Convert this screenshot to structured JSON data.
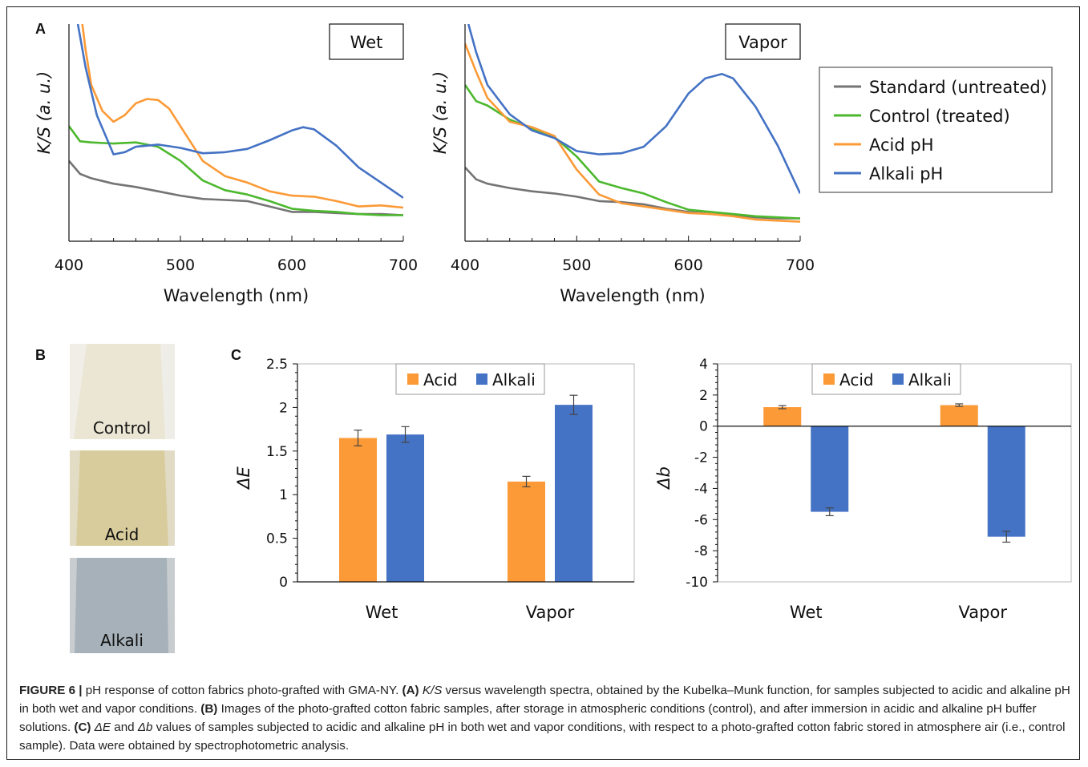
{
  "panels": {
    "A": "A",
    "B": "B",
    "C": "C"
  },
  "colors": {
    "standard": "#747474",
    "control": "#4cb82e",
    "acid": "#fb9a36",
    "alkali": "#4472c4"
  },
  "panel_b": {
    "samples": [
      {
        "label": "Control",
        "color": "#ebe6d4"
      },
      {
        "label": "Acid",
        "color": "#d9cc9c"
      },
      {
        "label": "Alkali",
        "color": "#a6b1b9"
      }
    ]
  },
  "caption": {
    "figure_label": "FIGURE 6 |",
    "intro": " pH response of cotton fabrics photo-grafted with GMA-NY. ",
    "a_tag": "(A)",
    "a_ks": " K/S",
    "a_text": " versus wavelength spectra, obtained by the Kubelka–Munk function, for samples subjected to acidic and alkaline pH in both wet and vapor conditions. ",
    "b_tag": "(B)",
    "b_text": " Images of the photo-grafted cotton fabric samples, after storage in atmospheric conditions (control), and after immersion in acidic and alkaline pH buffer solutions. ",
    "c_tag": "(C)",
    "c_de": " ΔE",
    "c_and": " and ",
    "c_db": "Δb",
    "c_text": " values of samples subjected to acidic and alkaline pH in both wet and vapor conditions, with respect to a photo-grafted cotton fabric stored in atmosphere air (i.e., control sample). Data were obtained by spectrophotometric analysis."
  },
  "chart_data": [
    {
      "type": "line",
      "panel": "A",
      "title": "Wet",
      "xlabel": "Wavelength (nm)",
      "ylabel": "K/S (a. u.)",
      "xlim": [
        400,
        700
      ],
      "ylim": [
        0,
        100
      ],
      "xticks": [
        400,
        500,
        600,
        700
      ],
      "y_tick_labels": false,
      "series": [
        {
          "name": "Standard (untreated)",
          "color": "#747474",
          "x": [
            400,
            410,
            420,
            440,
            460,
            480,
            500,
            520,
            540,
            560,
            580,
            600,
            620,
            640,
            660,
            680,
            700
          ],
          "y": [
            37,
            31,
            29,
            26.5,
            25,
            23,
            21,
            19.5,
            19,
            18.5,
            16,
            13.5,
            13.5,
            13,
            12.5,
            12.5,
            12
          ]
        },
        {
          "name": "Control (treated)",
          "color": "#4cb82e",
          "x": [
            400,
            410,
            420,
            440,
            460,
            480,
            500,
            520,
            540,
            560,
            580,
            600,
            620,
            640,
            660,
            680,
            700
          ],
          "y": [
            53,
            46,
            45.5,
            45,
            45.5,
            43.5,
            37,
            28,
            23.5,
            21.5,
            18.5,
            15,
            14,
            13.5,
            12.5,
            12,
            12
          ]
        },
        {
          "name": "Acid pH",
          "color": "#fb9a36",
          "x": [
            412,
            415,
            420,
            430,
            440,
            450,
            460,
            470,
            480,
            490,
            500,
            520,
            540,
            560,
            580,
            600,
            620,
            640,
            660,
            680,
            700
          ],
          "y": [
            100,
            88,
            72,
            60,
            55,
            58,
            63.5,
            65.5,
            65,
            61,
            53,
            37,
            30,
            27,
            23,
            21,
            20.5,
            18.5,
            16,
            16.5,
            15.5
          ]
        },
        {
          "name": "Alkali pH",
          "color": "#4472c4",
          "x": [
            408,
            415,
            425,
            440,
            450,
            460,
            480,
            500,
            520,
            540,
            560,
            580,
            600,
            610,
            620,
            640,
            660,
            680,
            700
          ],
          "y": [
            100,
            80,
            58,
            40,
            41,
            43.5,
            44.5,
            43,
            40.5,
            41,
            42.5,
            46.5,
            51,
            52.5,
            51.5,
            44,
            34,
            27,
            20
          ]
        }
      ]
    },
    {
      "type": "line",
      "panel": "A",
      "title": "Vapor",
      "xlabel": "Wavelength (nm)",
      "ylabel": "K/S (a. u.)",
      "xlim": [
        400,
        700
      ],
      "ylim": [
        0,
        100
      ],
      "xticks": [
        400,
        500,
        600,
        700
      ],
      "y_tick_labels": false,
      "series": [
        {
          "name": "Standard (untreated)",
          "color": "#747474",
          "x": [
            400,
            410,
            420,
            440,
            460,
            480,
            500,
            520,
            540,
            560,
            580,
            600,
            620,
            640,
            660,
            680,
            700
          ],
          "y": [
            34,
            28.5,
            26.5,
            24.5,
            23,
            22,
            20.5,
            18.5,
            18,
            17,
            15,
            13.5,
            12.5,
            12,
            11,
            10.5,
            10.5
          ]
        },
        {
          "name": "Control (treated)",
          "color": "#4cb82e",
          "x": [
            400,
            410,
            420,
            440,
            460,
            480,
            500,
            520,
            540,
            560,
            580,
            600,
            620,
            640,
            660,
            680,
            700
          ],
          "y": [
            72,
            64.5,
            62.5,
            56,
            52,
            48,
            39,
            27.5,
            24.5,
            22,
            18,
            14.5,
            13.5,
            12.5,
            11.5,
            11,
            10.5
          ]
        },
        {
          "name": "Acid pH",
          "color": "#fb9a36",
          "x": [
            400,
            410,
            420,
            440,
            460,
            480,
            500,
            520,
            540,
            560,
            580,
            600,
            620,
            640,
            660,
            680,
            700
          ],
          "y": [
            91,
            78,
            66,
            55,
            52.5,
            48.5,
            33,
            21.5,
            17.5,
            16,
            14.5,
            13,
            12.5,
            11.5,
            10,
            9.5,
            9
          ]
        },
        {
          "name": "Alkali pH",
          "color": "#4472c4",
          "x": [
            403,
            410,
            420,
            440,
            460,
            480,
            500,
            520,
            540,
            560,
            580,
            600,
            615,
            630,
            640,
            660,
            680,
            700
          ],
          "y": [
            100,
            87,
            72,
            58.5,
            51,
            47.5,
            41.5,
            40,
            40.5,
            43.5,
            53,
            68,
            75,
            77,
            75,
            62,
            44,
            22
          ]
        }
      ]
    },
    {
      "type": "bar",
      "panel": "C",
      "categories": [
        "Wet",
        "Vapor"
      ],
      "ylabel": "ΔE",
      "ylim": [
        0,
        2.5
      ],
      "yticks": [
        0,
        0.5,
        1,
        1.5,
        2,
        2.5
      ],
      "ytick_labels": [
        "0",
        "0.5",
        "1",
        "1.5",
        "2",
        "2.5"
      ],
      "legend": "top",
      "series": [
        {
          "name": "Acid",
          "color": "#fb9a36",
          "values": [
            1.65,
            1.15
          ],
          "errors": [
            0.09,
            0.06
          ]
        },
        {
          "name": "Alkali",
          "color": "#4472c4",
          "values": [
            1.69,
            2.03
          ],
          "errors": [
            0.09,
            0.11
          ]
        }
      ]
    },
    {
      "type": "bar",
      "panel": "C",
      "categories": [
        "Wet",
        "Vapor"
      ],
      "ylabel": "Δb",
      "ylim": [
        -10,
        4
      ],
      "yticks": [
        -10,
        -8,
        -6,
        -4,
        -2,
        0,
        2,
        4
      ],
      "ytick_labels": [
        "-10",
        "-8",
        "-6",
        "-4",
        "-2",
        "0",
        "2",
        "4"
      ],
      "legend": "top",
      "series": [
        {
          "name": "Acid",
          "color": "#fb9a36",
          "values": [
            1.22,
            1.35
          ],
          "errors": [
            0.1,
            0.08
          ]
        },
        {
          "name": "Alkali",
          "color": "#4472c4",
          "values": [
            -5.5,
            -7.1
          ],
          "errors": [
            0.25,
            0.35
          ]
        }
      ]
    }
  ]
}
